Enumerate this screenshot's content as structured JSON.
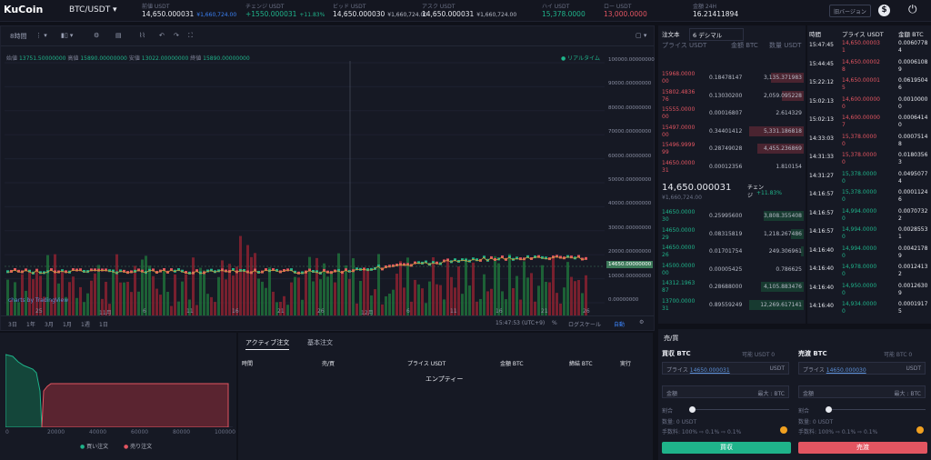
{
  "header": {
    "logo": "KuCoin",
    "pair": "BTC/USDT ▾",
    "stats": [
      {
        "label": "前値 USDT",
        "value": "14,650.000031",
        "sub": "¥1,660,724.00",
        "sub_color": "#3b82f6"
      },
      {
        "label": "チェンジ USDT",
        "value": "+1550.000031",
        "sub": "+11.83%",
        "value_color": "#1fb38a",
        "sub_color": "#1fb38a"
      },
      {
        "label": "ビッド USDT",
        "value": "14,650.000030",
        "sub": "¥1,660,724.00"
      },
      {
        "label": "アスク USDT",
        "value": "14,650.000031",
        "sub": "¥1,660,724.00"
      },
      {
        "label": "ハイ USDT",
        "value": "15,378.0000",
        "value_color": "#1fb38a"
      },
      {
        "label": "ロー USDT",
        "value": "13,000.0000",
        "value_color": "#e25561"
      },
      {
        "label": "金額 24H",
        "value": "16.21411894"
      }
    ],
    "old_version": "旧バージョン"
  },
  "chart": {
    "interval": "8時間",
    "ohlc": {
      "open_l": "始値",
      "open": "13751.50000000",
      "high_l": "高値",
      "high": "15890.00000000",
      "low_l": "安値",
      "low": "13022.00000000",
      "close_l": "終値",
      "close": "15890.00000000"
    },
    "realtime": "● リアルタイム",
    "y_ticks": [
      "100000.00000000",
      "90000.00000000",
      "80000.00000000",
      "70000.00000000",
      "60000.00000000",
      "50000.00000000",
      "40000.00000000",
      "30000.00000000",
      "20000.00000000",
      "10000.00000000",
      "0.00000000"
    ],
    "price_tag": "14650.00000000",
    "x_ticks": [
      "25",
      "11月",
      "6",
      "11",
      "16",
      "21",
      "26",
      "12月",
      "6",
      "11",
      "16",
      "21",
      "26"
    ],
    "credit": "charts by TradingView",
    "ranges": [
      "3日",
      "1年",
      "3月",
      "1月",
      "1週",
      "1日"
    ],
    "time": "15:47:53 (UTC+9)",
    "pct": "%",
    "log": "ログスケール",
    "auto": "自動"
  },
  "book": {
    "title": "注文本",
    "decimals": "6 デシマル",
    "cols": [
      "プライス USDT",
      "金額 BTC",
      "数量 USDT"
    ],
    "asks": [
      {
        "price": "15968.0000\n00",
        "amount": "0.18478147",
        "total": "3,135.371983"
      },
      {
        "price": "15802.4836\n76",
        "amount": "0.13030200",
        "total": "2,059.095228"
      },
      {
        "price": "15555.0000\n00",
        "amount": "0.00016807",
        "total": "2.614329"
      },
      {
        "price": "15497.0000\n00",
        "amount": "0.34401412",
        "total": "5,331.186818"
      },
      {
        "price": "15496.9999\n99",
        "amount": "0.28749028",
        "total": "4,455.236869"
      },
      {
        "price": "14650.0000\n31",
        "amount": "0.00012356",
        "total": "1.810154"
      }
    ],
    "last": "14,650.000031",
    "last_sub": "¥1,660,724.00",
    "change_l": "チェン\nジ",
    "change": "+11.83%",
    "bids": [
      {
        "price": "14650.0000\n30",
        "amount": "0.25995600",
        "total": "3,808.355408"
      },
      {
        "price": "14650.0000\n29",
        "amount": "0.08315819",
        "total": "1,218.267486"
      },
      {
        "price": "14650.0000\n26",
        "amount": "0.01701754",
        "total": "249.306961"
      },
      {
        "price": "14500.0000\n00",
        "amount": "0.00005425",
        "total": "0.786625"
      },
      {
        "price": "14312.1963\n87",
        "amount": "0.28688000",
        "total": "4,105.883476"
      },
      {
        "price": "13700.0000\n31",
        "amount": "0.89559249",
        "total": "12,269.617141"
      }
    ]
  },
  "trades": {
    "cols": [
      "時間",
      "プライス USDT",
      "金額 BTC"
    ],
    "rows": [
      {
        "t": "15:47:45",
        "p": "14,650.00003\n1",
        "a": "0.0060778\n4",
        "c": "r"
      },
      {
        "t": "15:44:45",
        "p": "14,650.00002\n8",
        "a": "0.0006108\n9",
        "c": "r"
      },
      {
        "t": "15:22:12",
        "p": "14,650.00001\n5",
        "a": "0.0619504\n6",
        "c": "r"
      },
      {
        "t": "15:02:13",
        "p": "14,600.00000\n0",
        "a": "0.0010000\n0",
        "c": "r"
      },
      {
        "t": "15:02:13",
        "p": "14,600.00000\n7",
        "a": "0.0006414\n0",
        "c": "r"
      },
      {
        "t": "14:33:03",
        "p": "15,378.0000\n0",
        "a": "0.0007514\n8",
        "c": "r"
      },
      {
        "t": "14:31:33",
        "p": "15,378.0000\n0",
        "a": "0.0180356\n3",
        "c": "r"
      },
      {
        "t": "14:31:27",
        "p": "15,378.0000\n0",
        "a": "0.0495077\n4",
        "c": "g"
      },
      {
        "t": "14:16:57",
        "p": "15,378.0000\n0",
        "a": "0.0001124\n6",
        "c": "g"
      },
      {
        "t": "14:16:57",
        "p": "14,994.0000\n0",
        "a": "0.0070732\n2",
        "c": "g"
      },
      {
        "t": "14:16:57",
        "p": "14,994.0000\n0",
        "a": "0.0028553\n1",
        "c": "g"
      },
      {
        "t": "14:16:40",
        "p": "14,994.0000\n0",
        "a": "0.0042178\n9",
        "c": "g"
      },
      {
        "t": "14:16:40",
        "p": "14,978.0000\n0",
        "a": "0.0012413\n2",
        "c": "g"
      },
      {
        "t": "14:16:40",
        "p": "14,950.0000\n0",
        "a": "0.0012630\n9",
        "c": "g"
      },
      {
        "t": "14:16:40",
        "p": "14,934.0000\n0",
        "a": "0.0001917\n5",
        "c": "g"
      }
    ]
  },
  "depth": {
    "x_ticks": [
      "0",
      "20000",
      "40000",
      "60000",
      "80000",
      "100000"
    ],
    "legend_buy": "買い注文",
    "legend_sell": "売り注文"
  },
  "active": {
    "tabs": [
      "アクティブ注文",
      "基本注文"
    ],
    "cols": [
      "時間",
      "売/買",
      "プライス USDT",
      "金額 BTC",
      "締結 BTC",
      "実行"
    ],
    "empty": "エンプティー"
  },
  "trade": {
    "title": "売/買",
    "buy_title": "買収 BTC",
    "sell_title": "売渡 BTC",
    "avail_buy": "可能 USDT 0",
    "avail_sell": "可能 BTC 0",
    "price_l": "プライス",
    "price_v": "14650.000031",
    "sell_price_v": "14650.000030",
    "unit_usdt": "USDT",
    "amount_l": "金額",
    "max": "最大 : BTC",
    "ratio": "割合",
    "qty_buy": "数量: 0 USDT",
    "qty_sell": "数量: 0 USDT",
    "fee": "手数料: 100% ⇨ 0.1% ⇨ 0.1%",
    "buy_btn": "買収",
    "sell_btn": "売渡"
  }
}
